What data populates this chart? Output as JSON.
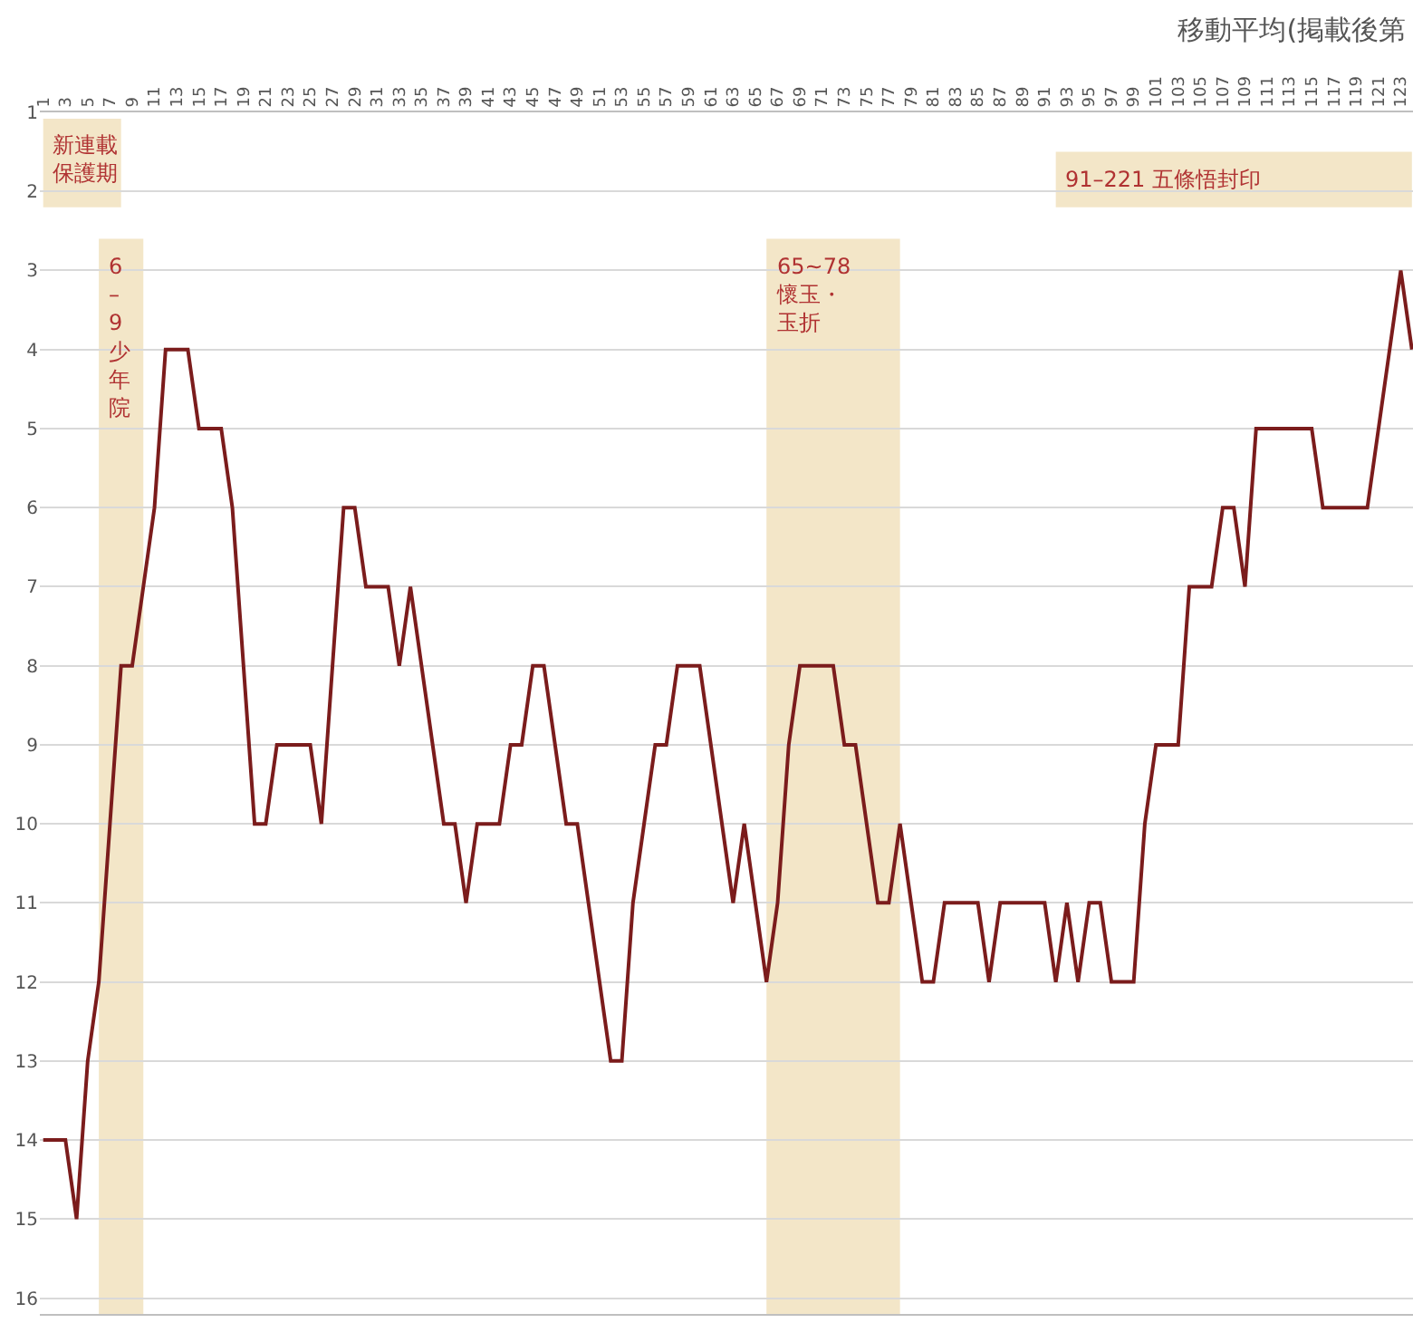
{
  "chart_data": {
    "type": "line",
    "title": "移動平均(掲載後第",
    "x": [
      1,
      2,
      3,
      4,
      5,
      6,
      7,
      8,
      9,
      10,
      11,
      12,
      13,
      14,
      15,
      16,
      17,
      18,
      19,
      20,
      21,
      22,
      23,
      24,
      25,
      26,
      27,
      28,
      29,
      30,
      31,
      32,
      33,
      34,
      35,
      36,
      37,
      38,
      39,
      40,
      41,
      42,
      43,
      44,
      45,
      46,
      47,
      48,
      49,
      50,
      51,
      52,
      53,
      54,
      55,
      56,
      57,
      58,
      59,
      60,
      61,
      62,
      63,
      64,
      65,
      66,
      67,
      68,
      69,
      70,
      71,
      72,
      73,
      74,
      75,
      76,
      77,
      78,
      79,
      80,
      81,
      82,
      83,
      84,
      85,
      86,
      87,
      88,
      89,
      90,
      91,
      92,
      93,
      94,
      95,
      96,
      97,
      98,
      99,
      100,
      101,
      102,
      103,
      104,
      105,
      106,
      107,
      108,
      109,
      110,
      111,
      112,
      113,
      114,
      115,
      116,
      117,
      118,
      119,
      120,
      121,
      122,
      123,
      124
    ],
    "series": [
      {
        "color": "#7b1c1c",
        "values": [
          14,
          14,
          14,
          15,
          13,
          12,
          10,
          8,
          8,
          7,
          6,
          4,
          4,
          4,
          5,
          5,
          5,
          6,
          8,
          10,
          10,
          9,
          9,
          9,
          9,
          10,
          8,
          6,
          6,
          7,
          7,
          7,
          8,
          7,
          8,
          9,
          10,
          10,
          11,
          10,
          10,
          10,
          9,
          9,
          8,
          8,
          9,
          10,
          10,
          11,
          12,
          13,
          13,
          11,
          10,
          9,
          9,
          8,
          8,
          8,
          9,
          10,
          11,
          10,
          11,
          12,
          11,
          9,
          8,
          8,
          8,
          8,
          9,
          9,
          10,
          11,
          11,
          10,
          11,
          12,
          12,
          11,
          11,
          11,
          11,
          12,
          11,
          11,
          11,
          11,
          11,
          12,
          11,
          12,
          11,
          11,
          12,
          12,
          12,
          10,
          9,
          9,
          9,
          7,
          7,
          7,
          6,
          6,
          7,
          5,
          5,
          5,
          5,
          5,
          5,
          6,
          6,
          6,
          6,
          6,
          5,
          4,
          3,
          4
        ]
      }
    ],
    "xlim": [
      0.7,
      124.1
    ],
    "ylim": [
      16.2,
      1
    ],
    "xticks": [
      1,
      3,
      5,
      7,
      9,
      11,
      13,
      15,
      17,
      19,
      21,
      23,
      25,
      27,
      29,
      31,
      33,
      35,
      37,
      39,
      41,
      43,
      45,
      47,
      49,
      51,
      53,
      55,
      57,
      59,
      61,
      63,
      65,
      67,
      69,
      71,
      73,
      75,
      77,
      79,
      81,
      83,
      85,
      87,
      89,
      91,
      93,
      95,
      97,
      99,
      101,
      103,
      105,
      107,
      109,
      111,
      113,
      115,
      117,
      119,
      121,
      123
    ],
    "yticks": [
      1,
      2,
      3,
      4,
      5,
      6,
      7,
      8,
      9,
      10,
      11,
      12,
      13,
      14,
      15,
      16
    ],
    "grid": "y",
    "marker": "none",
    "line_style": "solid",
    "bands": [
      {
        "axis": "x",
        "from": 1,
        "to": 8,
        "label": "新連載保護期",
        "color": "#f3e6c8"
      },
      {
        "axis": "x",
        "from": 6,
        "to": 10,
        "label": "6–9少年院",
        "color": "#f3e6c8"
      },
      {
        "axis": "x",
        "from": 66,
        "to": 78,
        "label": "65~78懷玉・玉折",
        "color": "#f3e6c8"
      },
      {
        "axis": "x",
        "from": 92,
        "to": 124,
        "label": "91–221 五條悟封印",
        "color": "#f3e6c8"
      }
    ]
  }
}
